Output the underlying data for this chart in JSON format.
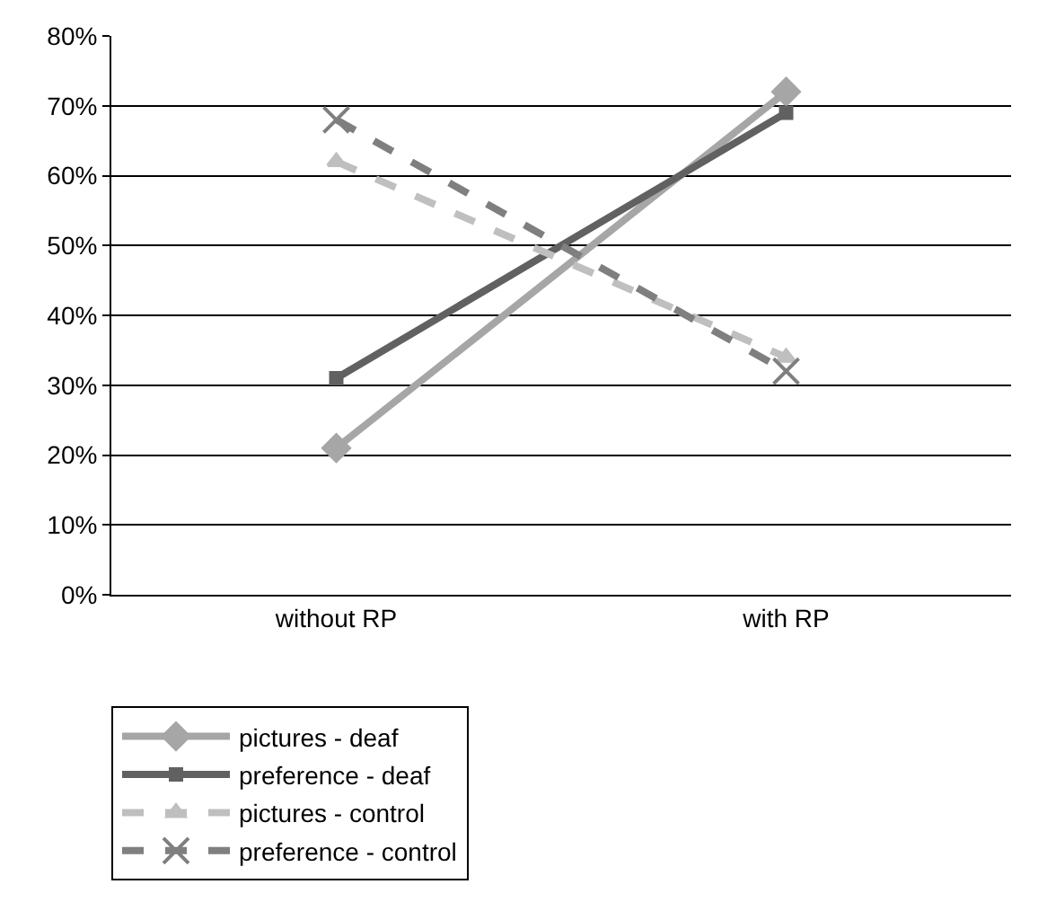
{
  "chart_data": {
    "type": "line",
    "categories": [
      "without RP",
      "with RP"
    ],
    "ylim": [
      0,
      0.8
    ],
    "yticks": [
      {
        "value": 0,
        "label": "0%"
      },
      {
        "value": 0.1,
        "label": "10%"
      },
      {
        "value": 0.2,
        "label": "20%"
      },
      {
        "value": 0.3,
        "label": "30%"
      },
      {
        "value": 0.4,
        "label": "40%"
      },
      {
        "value": 0.5,
        "label": "50%"
      },
      {
        "value": 0.6,
        "label": "60%"
      },
      {
        "value": 0.7,
        "label": "70%"
      },
      {
        "value": 0.8,
        "label": "80%"
      }
    ],
    "grid": "y",
    "legend": "bottom left",
    "series": [
      {
        "name": "pictures - deaf",
        "color": "#a6a6a6",
        "values": [
          0.21,
          0.72
        ],
        "marker": "diamond",
        "line_style": "solid"
      },
      {
        "name": "preference - deaf",
        "color": "#616161",
        "values": [
          0.31,
          0.69
        ],
        "marker": "square",
        "line_style": "solid"
      },
      {
        "name": "pictures - control",
        "color": "#bfbfbf",
        "values": [
          0.62,
          0.34
        ],
        "marker": "triangle",
        "line_style": "dashed"
      },
      {
        "name": "preference - control",
        "color": "#7f7f7f",
        "values": [
          0.68,
          0.32
        ],
        "marker": "cross",
        "line_style": "dashed"
      }
    ]
  }
}
